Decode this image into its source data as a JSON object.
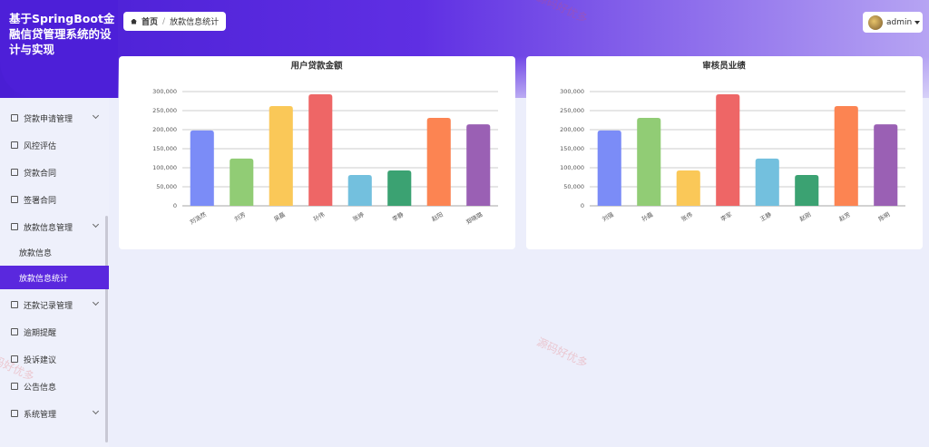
{
  "sidebar": {
    "title": "基于SpringBoot金融信贷管理系统的设计与实现",
    "menu": [
      {
        "label": "贷款申请管理",
        "expandable": true
      },
      {
        "label": "风控评估"
      },
      {
        "label": "贷款合同"
      },
      {
        "label": "签署合同"
      },
      {
        "label": "放款信息管理",
        "expandable": true,
        "children": [
          {
            "label": "放款信息"
          },
          {
            "label": "放款信息统计",
            "active": true
          }
        ]
      },
      {
        "label": "还款记录管理",
        "expandable": true
      },
      {
        "label": "逾期提醒"
      },
      {
        "label": "投诉建议"
      },
      {
        "label": "公告信息"
      },
      {
        "label": "系统管理",
        "expandable": true
      }
    ]
  },
  "breadcrumb": {
    "items": [
      "首页",
      "放款信息统计"
    ],
    "separator": "/"
  },
  "user": "admin",
  "watermark": "源码好优多",
  "chart_data": [
    {
      "type": "bar",
      "title": "用户贷款金额",
      "categories": [
        "刘浩然",
        "刘芳",
        "吴磊",
        "孙伟",
        "张婷",
        "李静",
        "赵阳",
        "郑晓璐"
      ],
      "values": [
        198000,
        124000,
        262000,
        293000,
        81000,
        93000,
        231000,
        214000
      ],
      "colors": [
        "#7b8cf7",
        "#91cc75",
        "#fac858",
        "#ee6666",
        "#73c0de",
        "#3ba272",
        "#fc8452",
        "#9a60b4"
      ],
      "ylim": [
        0,
        300000
      ],
      "yticks": [
        0,
        {
          "value": 50000,
          "label": "50,000"
        },
        {
          "value": 100000,
          "label": "100,000"
        },
        {
          "value": 150000,
          "label": "150,000"
        },
        {
          "value": 200000,
          "label": "200,000"
        },
        {
          "value": 250000,
          "label": "250,000"
        },
        {
          "value": 300000,
          "label": "300,000"
        }
      ],
      "grid": true
    },
    {
      "type": "bar",
      "title": "审核员业绩",
      "categories": [
        "刘强",
        "孙磊",
        "张伟",
        "李军",
        "王静",
        "赵刚",
        "赵芳",
        "陈明"
      ],
      "values": [
        198000,
        231000,
        93000,
        293000,
        124000,
        81000,
        262000,
        214000
      ],
      "colors": [
        "#7b8cf7",
        "#91cc75",
        "#fac858",
        "#ee6666",
        "#73c0de",
        "#3ba272",
        "#fc8452",
        "#9a60b4"
      ],
      "ylim": [
        0,
        300000
      ],
      "yticks": [
        0,
        {
          "value": 50000,
          "label": "50,000"
        },
        {
          "value": 100000,
          "label": "100,000"
        },
        {
          "value": 150000,
          "label": "150,000"
        },
        {
          "value": 200000,
          "label": "200,000"
        },
        {
          "value": 250000,
          "label": "250,000"
        },
        {
          "value": 300000,
          "label": "300,000"
        }
      ],
      "grid": true
    }
  ]
}
